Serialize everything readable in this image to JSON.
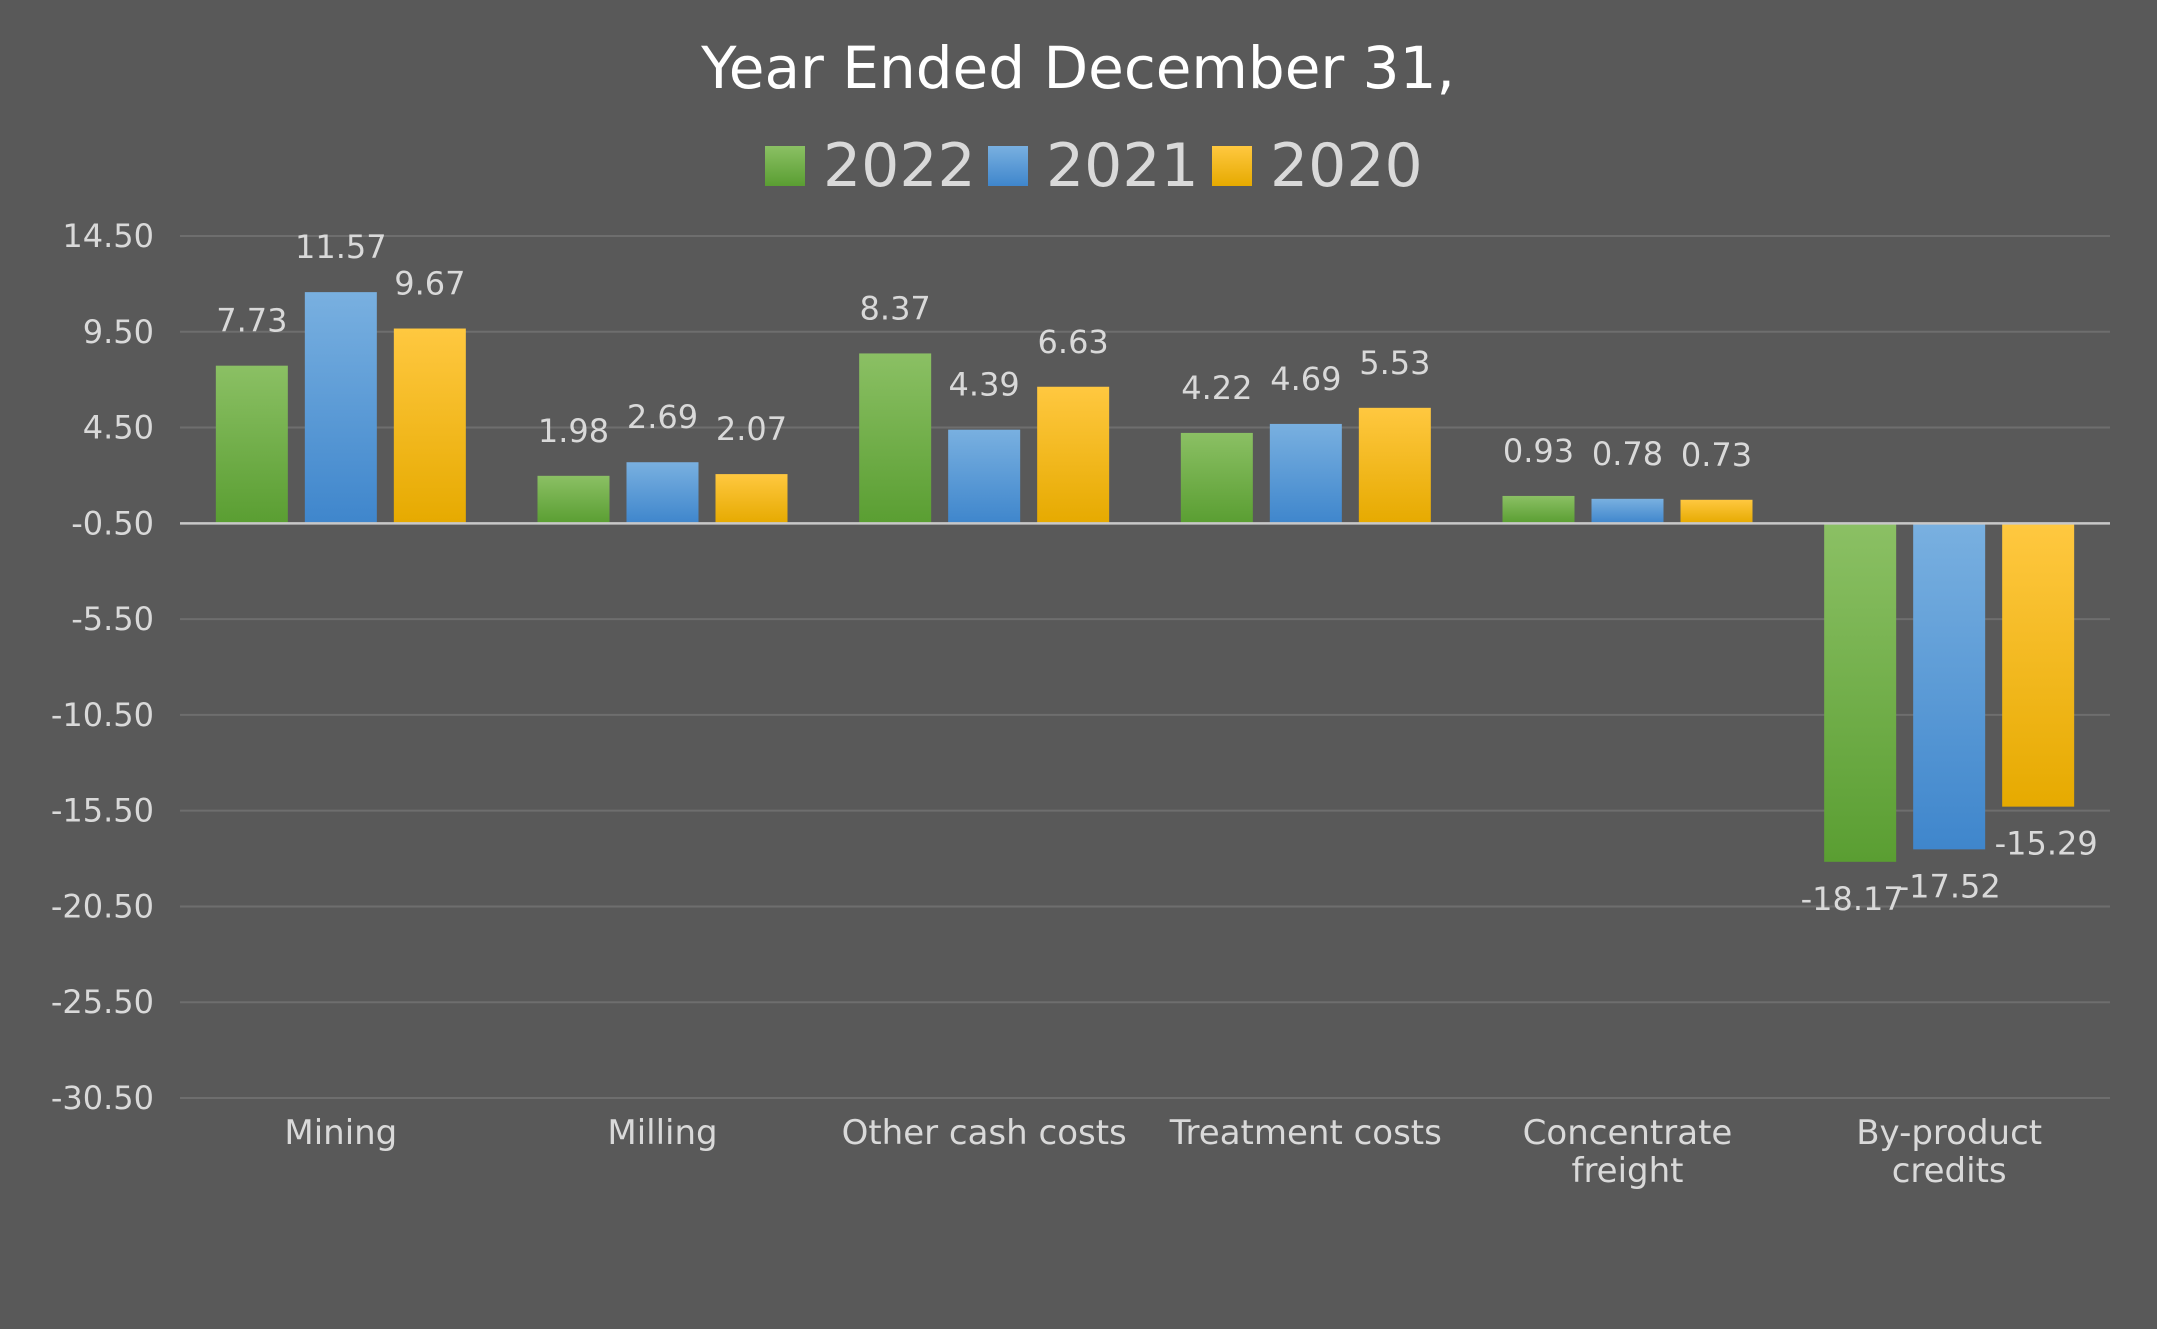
{
  "chart_data": {
    "type": "bar",
    "title": "Year Ended December 31,",
    "xlabel": "",
    "ylabel": "",
    "categories": [
      "Mining",
      "Milling",
      "Other cash costs",
      "Treatment costs",
      "Concentrate freight",
      "By-product credits"
    ],
    "series": [
      {
        "name": "2022",
        "color": "#70AD47",
        "values": [
          7.73,
          1.98,
          8.37,
          4.22,
          0.93,
          -18.17
        ],
        "labels": [
          "7.73",
          "1.98",
          "8.37",
          "4.22",
          "0.93",
          "-18.17"
        ]
      },
      {
        "name": "2021",
        "color": "#5B9BD5",
        "values": [
          11.57,
          2.69,
          4.39,
          4.69,
          0.78,
          -17.52
        ],
        "labels": [
          "11.57",
          "2.69",
          "4.39",
          "4.69",
          "0.78",
          "-17.52"
        ]
      },
      {
        "name": "2020",
        "color": "#FFC000",
        "values": [
          9.67,
          2.07,
          6.63,
          5.53,
          0.73,
          -15.29
        ],
        "labels": [
          "9.67",
          "2.07",
          "6.63",
          "5.53",
          "0.73",
          "-15.29"
        ]
      }
    ],
    "ylim": [
      -30.5,
      14.5
    ],
    "yticks": [
      14.5,
      9.5,
      4.5,
      -0.5,
      -5.5,
      -10.5,
      -15.5,
      -20.5,
      -25.5,
      -30.5
    ],
    "ytick_labels": [
      "14.50",
      "9.50",
      "4.50",
      "-0.50",
      "-5.50",
      "-10.50",
      "-15.50",
      "-20.50",
      "-25.50",
      "-30.50"
    ],
    "legend_position": "top",
    "grid": true
  }
}
